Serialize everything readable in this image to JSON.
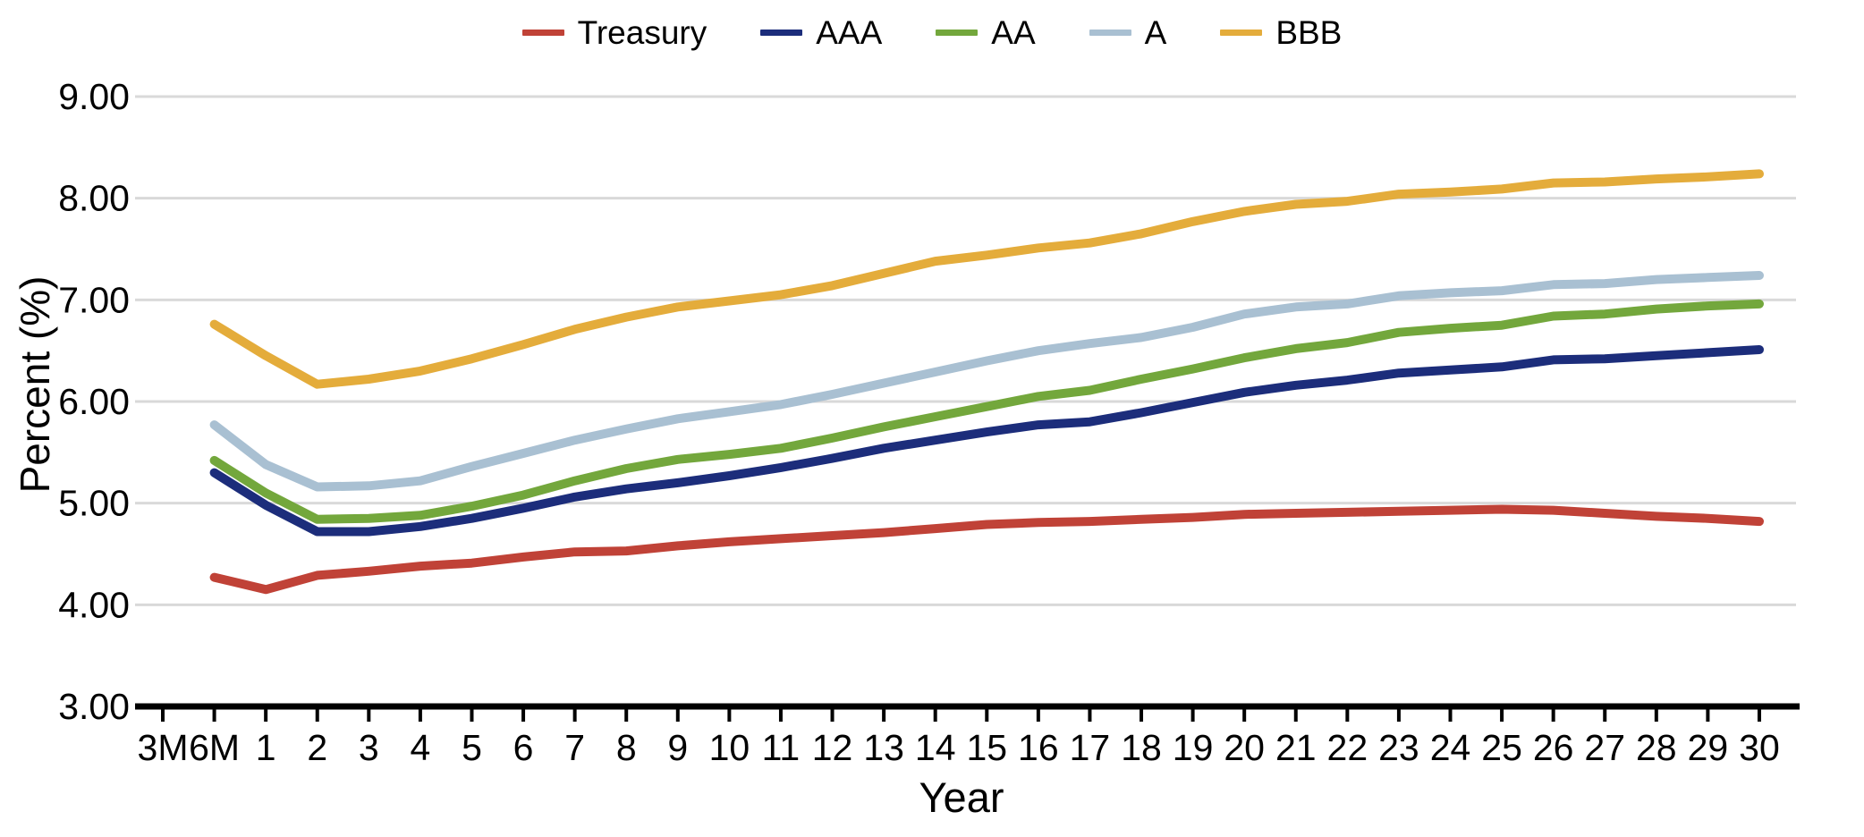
{
  "chart_data": {
    "type": "line",
    "title": "",
    "xlabel": "Year",
    "ylabel": "Percent (%)",
    "ylim": [
      3.0,
      9.0
    ],
    "y_ticks": [
      "3.00",
      "4.00",
      "5.00",
      "6.00",
      "7.00",
      "8.00",
      "9.00"
    ],
    "x_ticks": [
      "3M",
      "6M",
      "1",
      "2",
      "3",
      "4",
      "5",
      "6",
      "7",
      "8",
      "9",
      "10",
      "11",
      "12",
      "13",
      "14",
      "15",
      "16",
      "17",
      "18",
      "19",
      "20",
      "21",
      "22",
      "23",
      "24",
      "25",
      "26",
      "27",
      "28",
      "29",
      "30"
    ],
    "data_starts_at_tick": "6M",
    "grid": "horizontal",
    "legend_position": "top",
    "colors": {
      "grid": "#D9D9D9",
      "axis": "#000000"
    },
    "series": [
      {
        "name": "Treasury",
        "color": "#C04237",
        "values": [
          4.27,
          4.15,
          4.29,
          4.33,
          4.38,
          4.41,
          4.47,
          4.52,
          4.53,
          4.58,
          4.62,
          4.65,
          4.68,
          4.71,
          4.75,
          4.79,
          4.81,
          4.82,
          4.84,
          4.86,
          4.89,
          4.9,
          4.91,
          4.92,
          4.93,
          4.94,
          4.93,
          4.9,
          4.87,
          4.85,
          4.82
        ]
      },
      {
        "name": "AAA",
        "color": "#1C2D7B",
        "values": [
          5.3,
          4.98,
          4.72,
          4.72,
          4.77,
          4.85,
          4.95,
          5.06,
          5.14,
          5.2,
          5.27,
          5.35,
          5.44,
          5.54,
          5.62,
          5.7,
          5.77,
          5.8,
          5.89,
          5.99,
          6.09,
          6.16,
          6.21,
          6.28,
          6.31,
          6.34,
          6.41,
          6.42,
          6.45,
          6.48,
          6.51
        ]
      },
      {
        "name": "AA",
        "color": "#73A73C",
        "values": [
          5.42,
          5.1,
          4.84,
          4.85,
          4.88,
          4.97,
          5.08,
          5.22,
          5.34,
          5.43,
          5.48,
          5.54,
          5.64,
          5.75,
          5.85,
          5.95,
          6.05,
          6.11,
          6.22,
          6.32,
          6.43,
          6.52,
          6.58,
          6.68,
          6.72,
          6.75,
          6.84,
          6.86,
          6.91,
          6.94,
          6.96
        ]
      },
      {
        "name": "A",
        "color": "#A9C0D2",
        "values": [
          5.77,
          5.38,
          5.16,
          5.17,
          5.22,
          5.36,
          5.49,
          5.62,
          5.73,
          5.83,
          5.9,
          5.97,
          6.07,
          6.18,
          6.29,
          6.4,
          6.5,
          6.57,
          6.63,
          6.73,
          6.86,
          6.93,
          6.96,
          7.04,
          7.07,
          7.09,
          7.15,
          7.16,
          7.2,
          7.22,
          7.24
        ]
      },
      {
        "name": "BBB",
        "color": "#E4AC3B",
        "values": [
          6.76,
          6.45,
          6.17,
          6.22,
          6.3,
          6.42,
          6.56,
          6.71,
          6.83,
          6.93,
          6.99,
          7.05,
          7.14,
          7.26,
          7.38,
          7.44,
          7.51,
          7.56,
          7.65,
          7.77,
          7.87,
          7.94,
          7.97,
          8.04,
          8.06,
          8.09,
          8.15,
          8.16,
          8.19,
          8.21,
          8.24
        ]
      }
    ]
  }
}
